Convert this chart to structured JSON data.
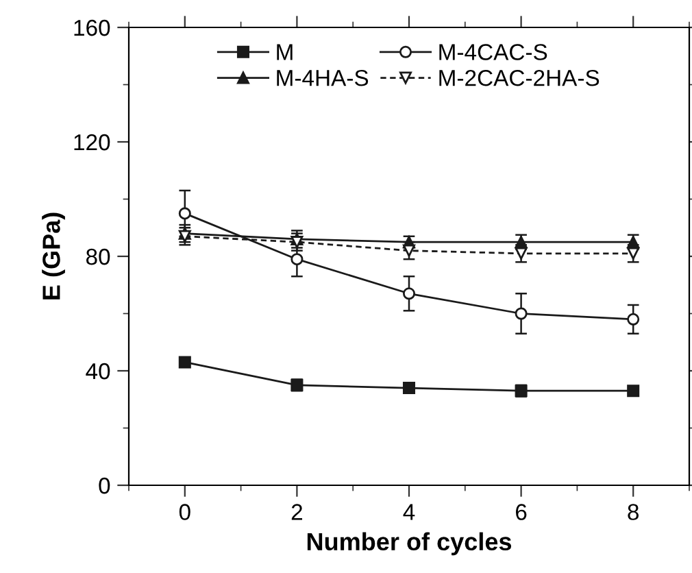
{
  "chart_data": {
    "type": "line",
    "xlabel": "Number of cycles",
    "ylabel": "E (GPa)",
    "x": [
      0,
      2,
      4,
      6,
      8
    ],
    "series": [
      {
        "name": "M",
        "color": "#1a1a1a",
        "marker": "square",
        "line_style": "solid",
        "values": [
          43,
          35,
          34,
          33,
          33
        ],
        "errors": [
          1.5,
          2,
          1.5,
          2,
          1
        ]
      },
      {
        "name": "M-4CAC-S",
        "color": "#1a1a1a",
        "marker": "circle",
        "line_style": "solid",
        "values": [
          95,
          79,
          67,
          60,
          58
        ],
        "errors": [
          8,
          6,
          6,
          7,
          5
        ]
      },
      {
        "name": "M-4HA-S",
        "color": "#1a1a1a",
        "marker": "triangle",
        "line_style": "solid",
        "values": [
          88,
          86,
          85,
          85,
          85
        ],
        "errors": [
          3,
          3,
          2,
          2.5,
          2.5
        ]
      },
      {
        "name": "M-2CAC-2HA-S",
        "color": "#1a1a1a",
        "marker": "triangle_down",
        "line_style": "dashed",
        "values": [
          87,
          85,
          82,
          81,
          81
        ],
        "errors": [
          3,
          3,
          3,
          3,
          3
        ]
      }
    ],
    "xlim": [
      -1,
      9
    ],
    "xticks": [
      0,
      2,
      4,
      6,
      8
    ],
    "ylim": [
      0,
      160
    ],
    "yticks": [
      0,
      40,
      80,
      120,
      160
    ],
    "grid": false,
    "legend": "top"
  }
}
